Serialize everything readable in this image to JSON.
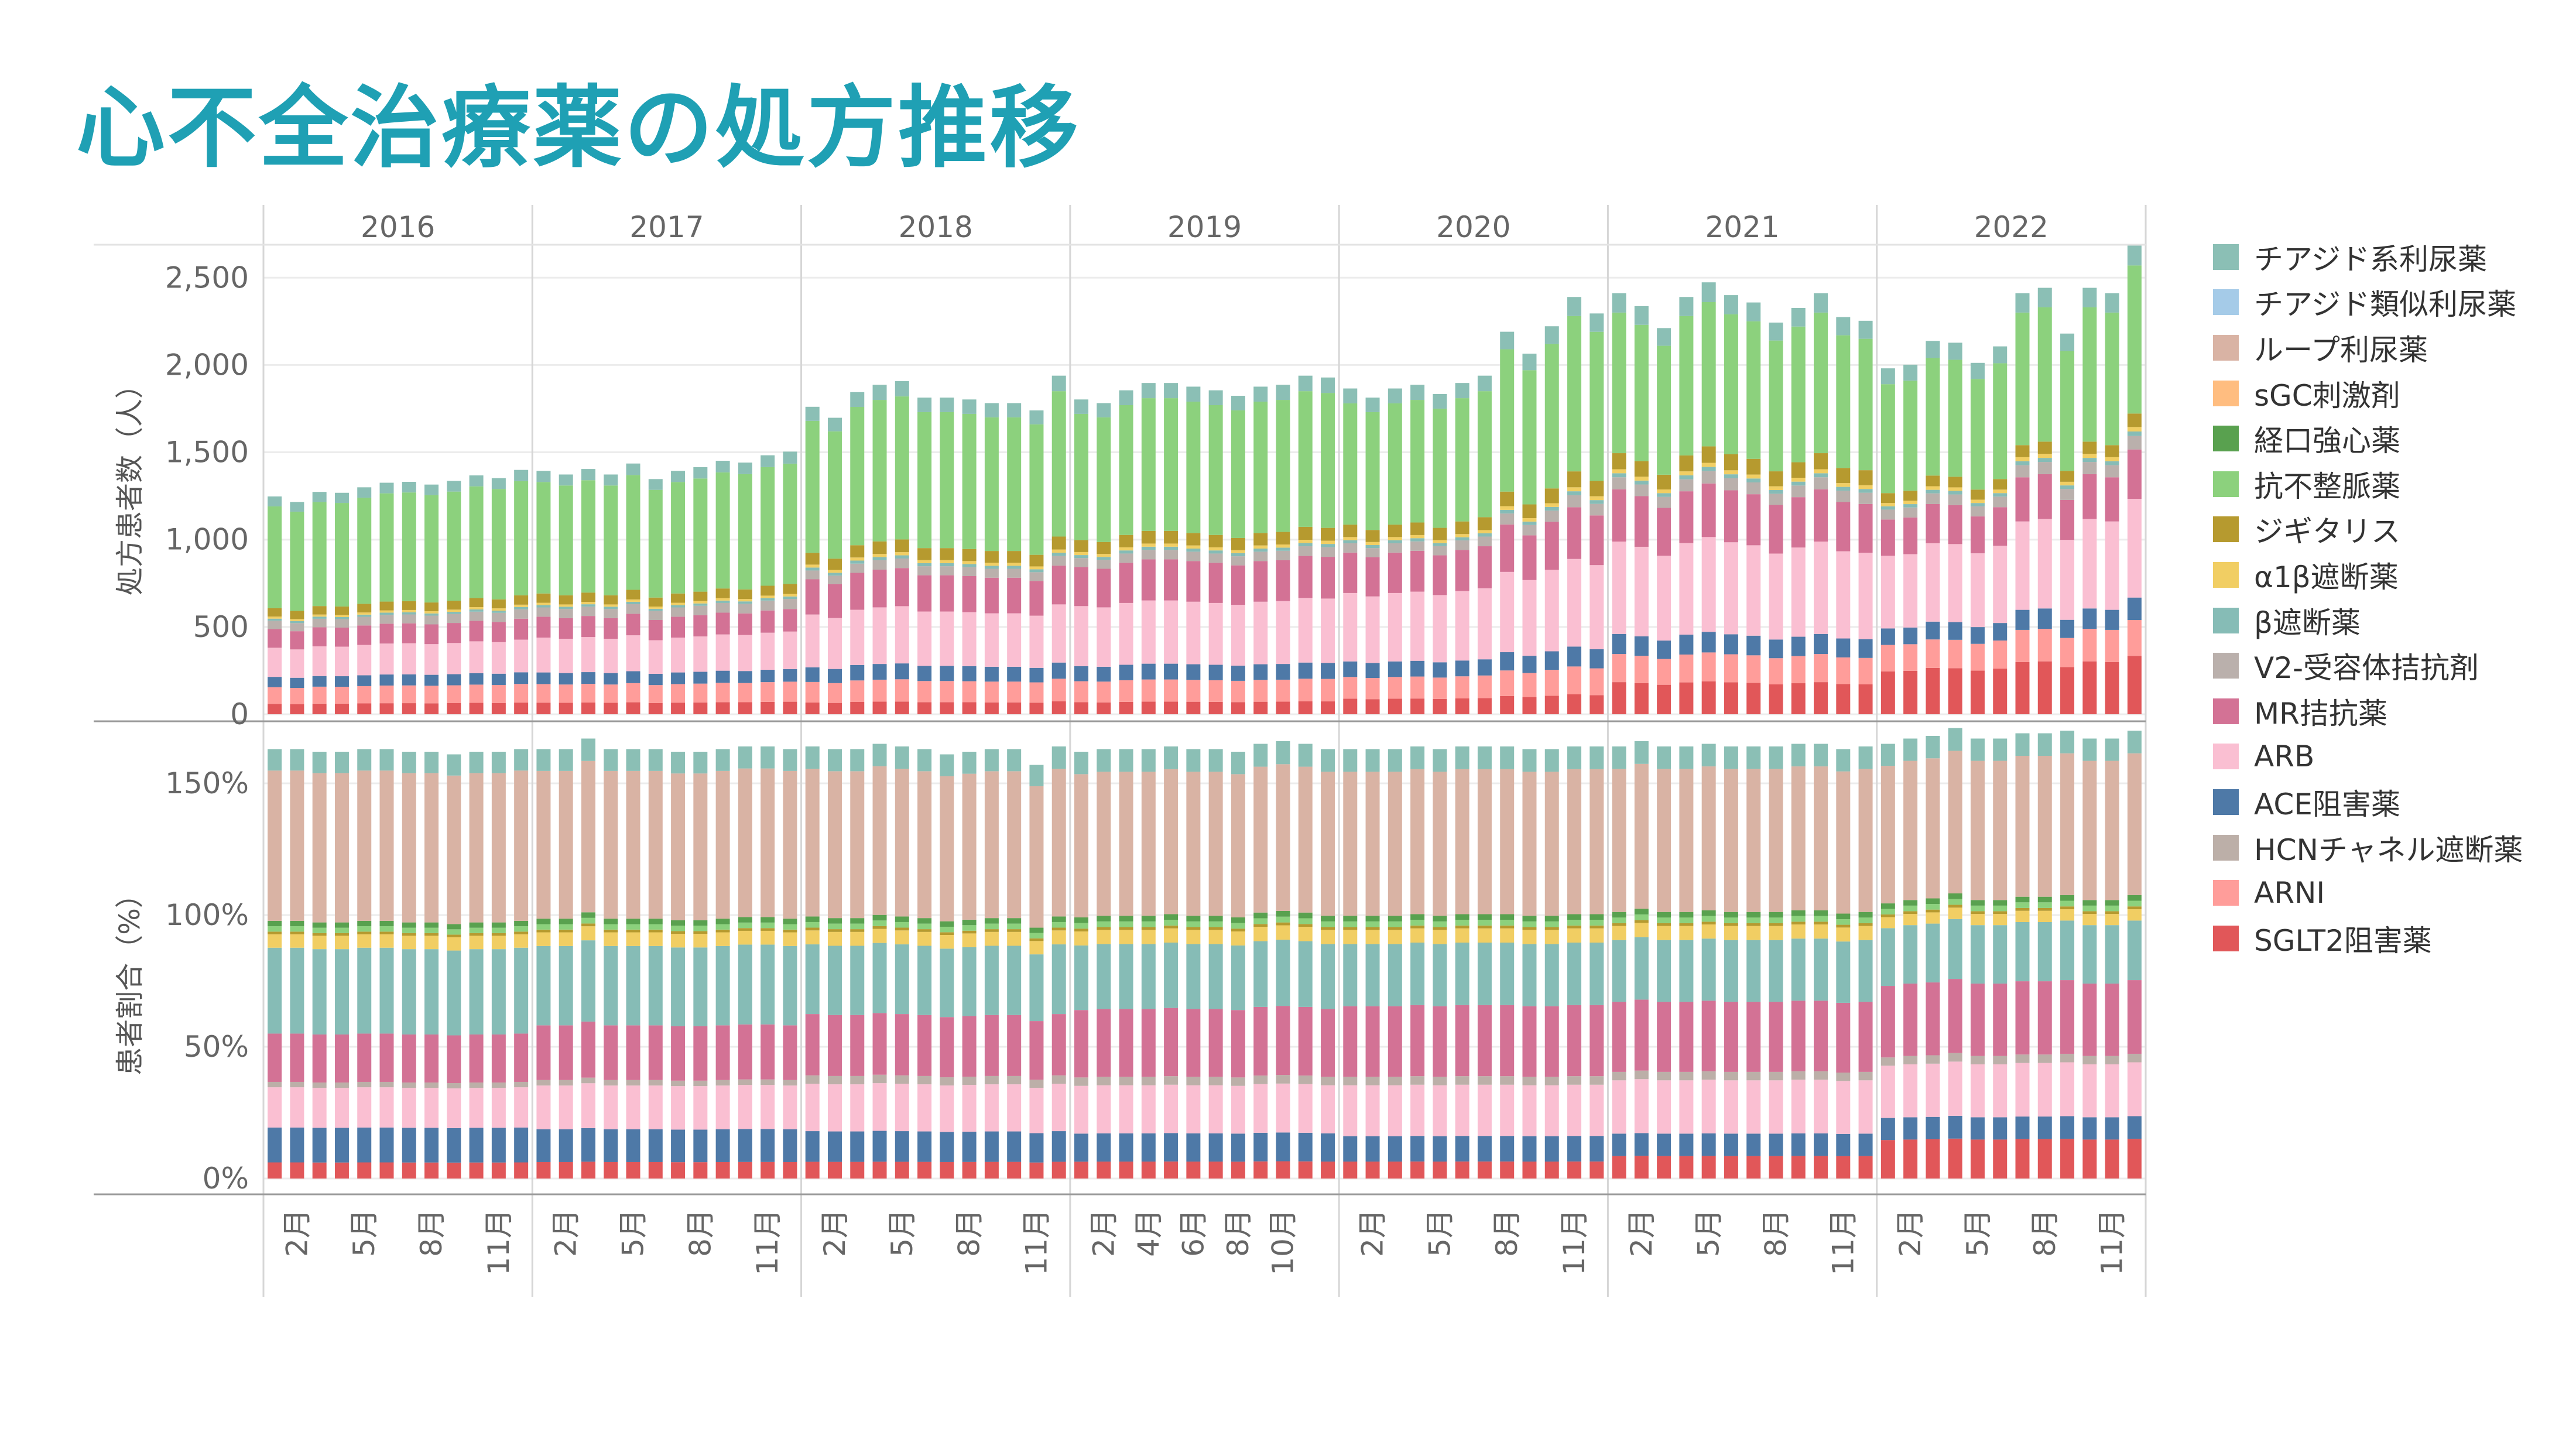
{
  "title": "心不全治療薬の処方推移",
  "chart_data": {
    "type": "bar",
    "stacked": true,
    "years": [
      "2016",
      "2017",
      "2018",
      "2019",
      "2020",
      "2021",
      "2022"
    ],
    "legend": [
      {
        "name": "チアジド系利尿薬",
        "color": "#8bbfb5"
      },
      {
        "name": "チアジド類似利尿薬",
        "color": "#a5cbe8"
      },
      {
        "name": "ループ利尿薬",
        "color": "#d9b3a4"
      },
      {
        "name": "sGC刺激剤",
        "color": "#ffbd80"
      },
      {
        "name": "経口強心薬",
        "color": "#59a14f"
      },
      {
        "name": "抗不整脈薬",
        "color": "#8cd17d"
      },
      {
        "name": "ジギタリス",
        "color": "#b69a2f"
      },
      {
        "name": "α1β遮断薬",
        "color": "#f1ce63"
      },
      {
        "name": "β遮断薬",
        "color": "#86bcb6"
      },
      {
        "name": "V2-受容体拮抗剤",
        "color": "#bab0ac"
      },
      {
        "name": "MR拮抗薬",
        "color": "#d37295"
      },
      {
        "name": "ARB",
        "color": "#fabfd2"
      },
      {
        "name": "ACE阻害薬",
        "color": "#4e79a7"
      },
      {
        "name": "HCNチャネル遮断薬",
        "color": "#bcafa8"
      },
      {
        "name": "ARNI",
        "color": "#ff9d9a"
      },
      {
        "name": "SGLT2阻害薬",
        "color": "#e15759"
      }
    ],
    "top_panel": {
      "ylabel": "処方患者数（人）",
      "ylim": [
        0,
        2600
      ],
      "yticks": [
        {
          "value": 0,
          "label": "0"
        },
        {
          "value": 500,
          "label": "500"
        },
        {
          "value": 1000,
          "label": "1,000"
        },
        {
          "value": 1500,
          "label": "1,500"
        },
        {
          "value": 2000,
          "label": "2,000"
        },
        {
          "value": 2500,
          "label": "2,500"
        }
      ],
      "totals": [
        [
          1190,
          1160,
          1215,
          1210,
          1240,
          1265,
          1270,
          1255,
          1275,
          1305,
          1290,
          1335
        ],
        [
          1330,
          1310,
          1340,
          1310,
          1370,
          1285,
          1330,
          1350,
          1385,
          1375,
          1415,
          1435
        ],
        [
          1680,
          1620,
          1760,
          1800,
          1820,
          1730,
          1730,
          1720,
          1700,
          1700,
          1660,
          1850
        ],
        [
          1720,
          1700,
          1770,
          1810,
          1810,
          1790,
          1770,
          1740,
          1790,
          1800,
          1850,
          1840
        ],
        [
          1780,
          1730,
          1780,
          1800,
          1750,
          1810,
          1850,
          2090,
          1970,
          2120,
          2280,
          2190
        ],
        [
          2300,
          2230,
          2110,
          2280,
          2360,
          2290,
          2250,
          2140,
          2220,
          2300,
          2170,
          2150
        ],
        [
          1890,
          1910,
          2040,
          2030,
          1920,
          2010,
          2300,
          2330,
          2080,
          2330,
          2300,
          2570
        ]
      ],
      "shares": [
        [
          0.05,
          0.08,
          0.05,
          0.14,
          0.09,
          0.04,
          0.01,
          0.01,
          0.04,
          0.49
        ],
        [
          0.05,
          0.08,
          0.05,
          0.15,
          0.09,
          0.04,
          0.01,
          0.01,
          0.04,
          0.48
        ],
        [
          0.04,
          0.07,
          0.05,
          0.18,
          0.12,
          0.03,
          0.01,
          0.01,
          0.04,
          0.45
        ],
        [
          0.04,
          0.07,
          0.05,
          0.2,
          0.13,
          0.03,
          0.01,
          0.01,
          0.04,
          0.42
        ],
        [
          0.05,
          0.07,
          0.05,
          0.22,
          0.13,
          0.03,
          0.01,
          0.01,
          0.04,
          0.39
        ],
        [
          0.08,
          0.07,
          0.05,
          0.23,
          0.13,
          0.03,
          0.01,
          0.01,
          0.04,
          0.35
        ],
        [
          0.13,
          0.08,
          0.05,
          0.22,
          0.11,
          0.03,
          0.01,
          0.01,
          0.03,
          0.33
        ]
      ]
    },
    "bottom_panel": {
      "ylabel": "患者割合（%）",
      "ylim": [
        -10,
        175
      ],
      "yticks": [
        {
          "value": 0,
          "label": "0%"
        },
        {
          "value": 50,
          "label": "50%"
        },
        {
          "value": 100,
          "label": "100%"
        },
        {
          "value": 150,
          "label": "150%"
        }
      ],
      "pct_totals": [
        [
          163,
          163,
          162,
          162,
          163,
          163,
          162,
          162,
          161,
          162,
          162,
          163
        ],
        [
          163,
          163,
          167,
          163,
          163,
          163,
          162,
          162,
          163,
          164,
          164,
          163
        ],
        [
          164,
          163,
          163,
          165,
          164,
          163,
          161,
          162,
          163,
          163,
          157,
          164
        ],
        [
          162,
          163,
          163,
          163,
          164,
          163,
          163,
          162,
          165,
          166,
          165,
          163
        ],
        [
          163,
          163,
          163,
          164,
          163,
          164,
          164,
          164,
          163,
          163,
          164,
          164
        ],
        [
          164,
          166,
          164,
          164,
          165,
          164,
          164,
          164,
          165,
          165,
          163,
          164
        ],
        [
          165,
          167,
          168,
          171,
          167,
          167,
          169,
          169,
          170,
          167,
          167,
          170
        ]
      ],
      "pct_stacks": [
        [
          6,
          13,
          15,
          2,
          18,
          32,
          5,
          1,
          2,
          2,
          56,
          8
        ],
        [
          6,
          12,
          16,
          2,
          20,
          29,
          5,
          1,
          2,
          2,
          54,
          8
        ],
        [
          6,
          11,
          17,
          3,
          22,
          25,
          5,
          1,
          2,
          2,
          53,
          8
        ],
        [
          6,
          10,
          17,
          3,
          24,
          23,
          5,
          1,
          2,
          2,
          51,
          8
        ],
        [
          6,
          9,
          18,
          3,
          25,
          22,
          5,
          1,
          2,
          2,
          51,
          8
        ],
        [
          8,
          8,
          19,
          3,
          25,
          22,
          5,
          1,
          2,
          2,
          51,
          8
        ],
        [
          14,
          8,
          19,
          3,
          26,
          21,
          4,
          1,
          2,
          2,
          50,
          8
        ]
      ]
    },
    "x_months": [
      "2月",
      "5月",
      "8月",
      "11月"
    ],
    "x_months_2019": [
      "2月",
      "4月",
      "6月",
      "8月",
      "10月"
    ]
  }
}
